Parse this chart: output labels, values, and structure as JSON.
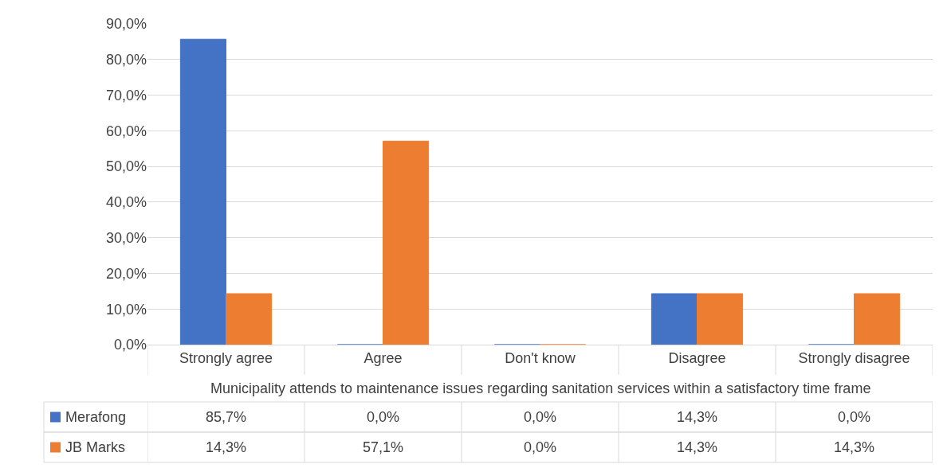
{
  "chart_data": {
    "type": "bar",
    "categories": [
      "Strongly agree",
      "Agree",
      "Don't know",
      "Disagree",
      "Strongly disagree"
    ],
    "xlabel": "Municipality attends to maintenance issues regarding sanitation services within a satisfactory time frame",
    "series": [
      {
        "name": "Merafong",
        "color": "#4472c4",
        "values": [
          85.7,
          0.0,
          0.0,
          14.3,
          0.0
        ],
        "value_labels": [
          "85,7%",
          "0,0%",
          "0,0%",
          "14,3%",
          "0,0%"
        ]
      },
      {
        "name": "JB Marks",
        "color": "#ed7d31",
        "values": [
          14.3,
          57.1,
          0.0,
          14.3,
          14.3
        ],
        "value_labels": [
          "14,3%",
          "57,1%",
          "0,0%",
          "14,3%",
          "14,3%"
        ]
      }
    ],
    "ylim": [
      0,
      90
    ],
    "yticks": [
      {
        "value": 0,
        "label": "0,0%"
      },
      {
        "value": 10,
        "label": "10,0%"
      },
      {
        "value": 20,
        "label": "20,0%"
      },
      {
        "value": 30,
        "label": "30,0%"
      },
      {
        "value": 40,
        "label": "40,0%"
      },
      {
        "value": 50,
        "label": "50,0%"
      },
      {
        "value": 60,
        "label": "60,0%"
      },
      {
        "value": 70,
        "label": "70,0%"
      },
      {
        "value": 80,
        "label": "80,0%"
      },
      {
        "value": 90,
        "label": "90,0%"
      }
    ],
    "grid": "y",
    "legend": "bottom"
  }
}
